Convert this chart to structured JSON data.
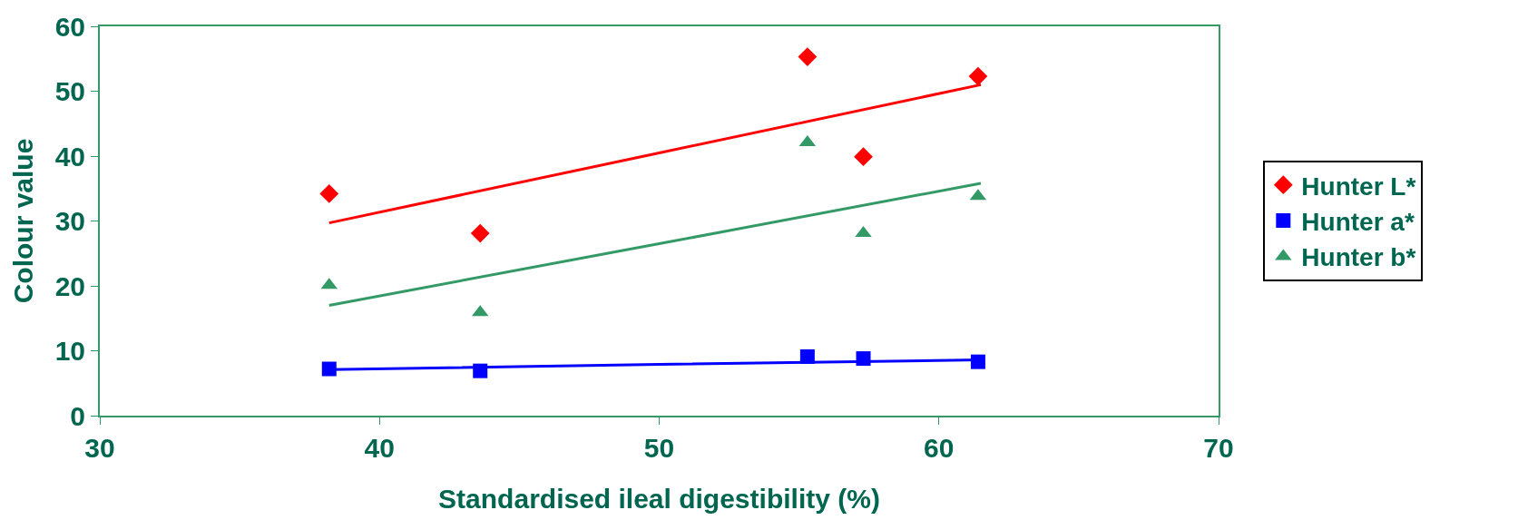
{
  "chart_data": {
    "type": "scatter",
    "xlabel": "Standardised ileal digestibility (%)",
    "ylabel": "Colour value",
    "x": [
      38.2,
      43.6,
      55.3,
      57.3,
      61.4
    ],
    "series": [
      {
        "name": "Hunter L*",
        "color": "#ff0000",
        "marker": "diamond",
        "values": [
          34.2,
          28.1,
          55.3,
          39.9,
          52.3
        ]
      },
      {
        "name": "Hunter a*",
        "color": "#0000ff",
        "marker": "square",
        "values": [
          7.2,
          6.9,
          9.1,
          8.8,
          8.3
        ]
      },
      {
        "name": "Hunter b*",
        "color": "#339966",
        "marker": "triangle",
        "values": [
          20.1,
          15.9,
          42.1,
          28.1,
          33.8
        ]
      },
      {
        "type": "line",
        "color": "#ff0000",
        "marker": "none",
        "x": [
          38.2,
          50,
          61.5
        ],
        "values": [
          29.7,
          40.5,
          51.0
        ]
      },
      {
        "type": "line",
        "color": "#0000ff",
        "marker": "none",
        "x": [
          38.2,
          50,
          61.5
        ],
        "values": [
          7.1,
          7.9,
          8.6
        ]
      },
      {
        "type": "line",
        "color": "#339966",
        "marker": "none",
        "x": [
          38.2,
          50,
          61.5
        ],
        "values": [
          17.0,
          26.5,
          35.8
        ]
      }
    ],
    "xlim": [
      30,
      70
    ],
    "xticks": [
      30,
      40,
      50,
      60,
      70
    ],
    "ylim": [
      0,
      60
    ],
    "yticks": [
      0,
      10,
      20,
      30,
      40,
      50,
      60
    ],
    "legend": "right"
  }
}
